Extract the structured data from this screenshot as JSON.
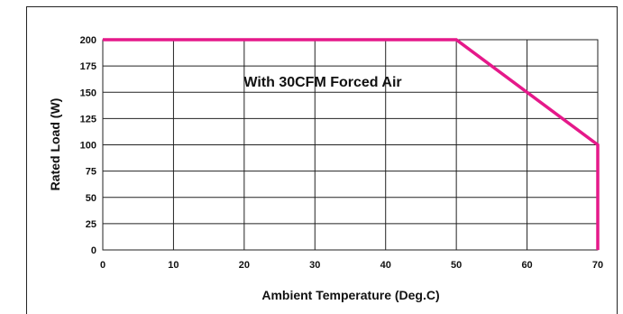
{
  "chart_data": {
    "type": "line",
    "title": "",
    "xlabel": "Ambient Temperature (Deg.C)",
    "ylabel": "Rated Load (W)",
    "annotation": "With 30CFM Forced Air",
    "xlim": [
      0,
      70
    ],
    "ylim": [
      0,
      200
    ],
    "x_ticks": [
      0,
      10,
      20,
      30,
      40,
      50,
      60,
      70
    ],
    "y_ticks": [
      0,
      25,
      50,
      75,
      100,
      125,
      150,
      175,
      200
    ],
    "grid": true,
    "series": [
      {
        "color": "#e5198a",
        "points": [
          [
            0,
            200
          ],
          [
            50,
            200
          ],
          [
            70,
            100
          ],
          [
            70,
            0
          ]
        ]
      }
    ]
  }
}
